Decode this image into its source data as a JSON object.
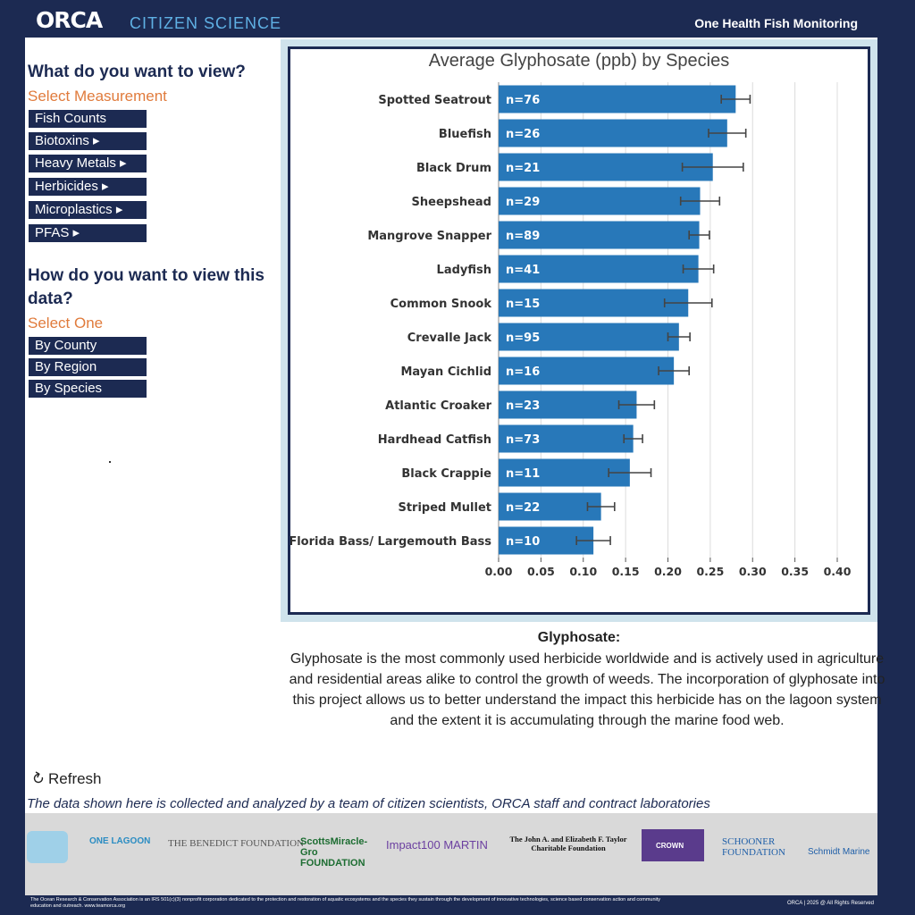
{
  "header": {
    "logo": "ORCA",
    "logo_sub": "CITIZEN SCIENCE",
    "right_title": "One Health Fish Monitoring"
  },
  "sidebar": {
    "q1": "What do you want to view?",
    "q1_sub": "Select Measurement",
    "measurements": [
      "Fish Counts",
      "Biotoxins ▸",
      "Heavy Metals ▸",
      "Herbicides ▸",
      "Microplastics ▸",
      "PFAS ▸"
    ],
    "q2": "How do you want to view this data?",
    "q2_sub": "Select One",
    "views": [
      "By County",
      "By Region",
      "By Species"
    ]
  },
  "chart_data": {
    "type": "bar",
    "orientation": "horizontal",
    "title": "Average Glyphosate (ppb) by Species",
    "categories": [
      "Spotted Seatrout",
      "Bluefish",
      "Black Drum",
      "Sheepshead",
      "Mangrove Snapper",
      "Ladyfish",
      "Common Snook",
      "Crevalle Jack",
      "Mayan Cichlid",
      "Atlantic Croaker",
      "Hardhead Catfish",
      "Black Crappie",
      "Striped Mullet",
      "Florida Bass/ Largemouth Bass"
    ],
    "values": [
      0.28,
      0.27,
      0.253,
      0.238,
      0.237,
      0.236,
      0.224,
      0.213,
      0.207,
      0.163,
      0.159,
      0.155,
      0.121,
      0.112
    ],
    "errors": [
      0.017,
      0.022,
      0.036,
      0.023,
      0.012,
      0.018,
      0.028,
      0.013,
      0.018,
      0.021,
      0.011,
      0.025,
      0.016,
      0.02
    ],
    "data_labels": [
      "n=76",
      "n=26",
      "n=21",
      "n=29",
      "n=89",
      "n=41",
      "n=15",
      "n=95",
      "n=16",
      "n=23",
      "n=73",
      "n=11",
      "n=22",
      "n=10"
    ],
    "xlim": [
      0,
      0.4
    ],
    "xticks": [
      "0.00",
      "0.05",
      "0.10",
      "0.15",
      "0.20",
      "0.25",
      "0.30",
      "0.35",
      "0.40"
    ],
    "grid": true,
    "bar_color": "#2878b9"
  },
  "description": {
    "title": "Glyphosate:",
    "text": "Glyphosate is the most commonly used herbicide worldwide and is actively used in agriculture and residential areas alike to control the growth of weeds. The incorporation of glyphosate into this project allows us to better understand the impact this herbicide has on the lagoon system and the extent it is accumulating through the marine food web."
  },
  "refresh_label": "Refresh",
  "footnote": "The data shown here is collected and analyzed by a team of citizen scientists, ORCA staff and contract laboratories",
  "sponsors": [
    "ONE LAGOON",
    "THE BENEDICT FOUNDATION",
    "ScottsMiracle-Gro FOUNDATION",
    "Impact100 MARTIN",
    "The John A. and Elizabeth F. Taylor Charitable Foundation",
    "CROWN",
    "SCHOONER FOUNDATION",
    "Schmidt Marine"
  ],
  "footer": {
    "left": "The Ocean Research & Conservation Association is an IRS 501(c)(3) nonprofit corporation dedicated to the protection and restoration of aquatic ecosystems and the species they sustain through the development of innovative technologies, science based conservation action and community education and outreach.        www.teamorca.org",
    "right": "ORCA | 2025 @ All Rights Reserved"
  },
  "colors": {
    "navy": "#1c2a52",
    "orange": "#e07b3c",
    "bar": "#2878b9"
  }
}
